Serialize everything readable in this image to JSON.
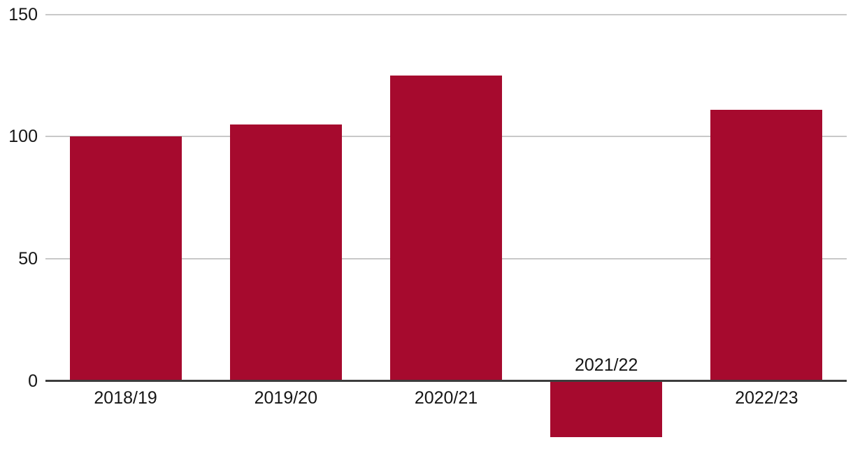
{
  "chart_data": {
    "type": "bar",
    "categories": [
      "2018/19",
      "2019/20",
      "2020/21",
      "2021/22",
      "2022/23"
    ],
    "values": [
      100,
      105,
      125,
      -23,
      111
    ],
    "title": "",
    "xlabel": "",
    "ylabel": "",
    "yticks": [
      0,
      50,
      100,
      150
    ],
    "ylim": [
      -30,
      155
    ],
    "grid": "horizontal-only",
    "legend": "none",
    "colors": {
      "bar": "#a60a2e",
      "gridline": "#c9c9c9",
      "axis": "#3d3d3d",
      "text": "#161616"
    }
  }
}
